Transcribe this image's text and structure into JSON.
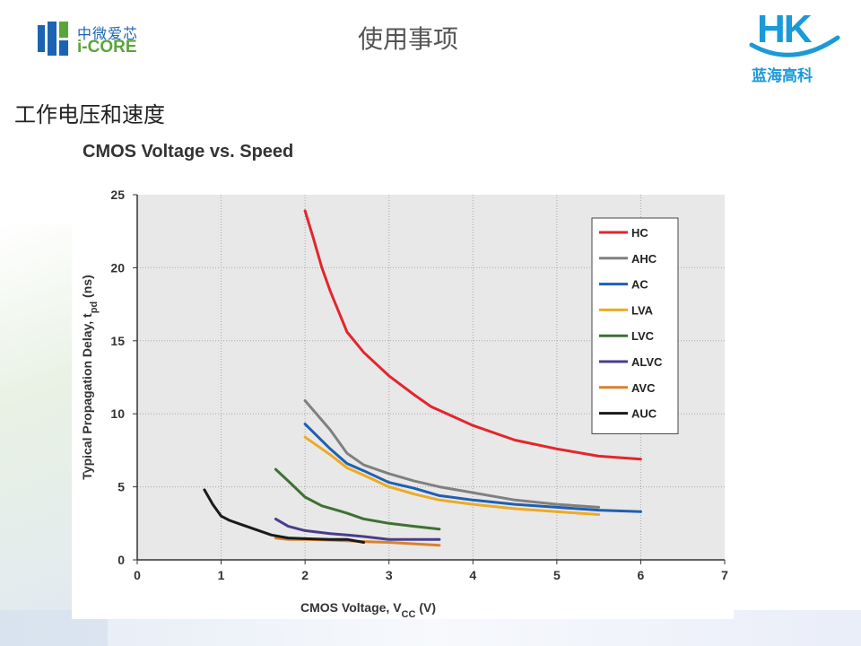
{
  "header": {
    "title": "使用事项",
    "logo_left": {
      "cn": "中微爱芯",
      "en": "i-CORE"
    },
    "logo_right": {
      "mark": "HK",
      "cn": "蓝海高科"
    }
  },
  "section": {
    "title": "工作电压和速度"
  },
  "colors": {
    "HC": "#e3262c",
    "AHC": "#808080",
    "AC": "#1f5fb0",
    "LVA": "#eeaa22",
    "LVC": "#3f7035",
    "ALVC": "#4a3c8c",
    "AVC": "#d9822b",
    "AUC": "#1a1a1a"
  },
  "chart_data": {
    "type": "line",
    "title": "CMOS Voltage vs. Speed",
    "xlabel": "CMOS Voltage, V",
    "xlabel_sub": "CC",
    "xlabel_unit": " (V)",
    "ylabel": "Typical Propagation Delay, t",
    "ylabel_sub": "pd",
    "ylabel_unit": " (ns)",
    "xlim": [
      0,
      7
    ],
    "ylim": [
      0,
      25
    ],
    "xticks": [
      "0",
      "1",
      "2",
      "3",
      "4",
      "5",
      "6",
      "7"
    ],
    "yticks": [
      "0",
      "5",
      "10",
      "15",
      "20",
      "25"
    ],
    "grid": true,
    "legend_position": "top-right",
    "series": [
      {
        "name": "HC",
        "points": [
          [
            2.0,
            23.9
          ],
          [
            2.1,
            22.0
          ],
          [
            2.2,
            20.0
          ],
          [
            2.3,
            18.4
          ],
          [
            2.5,
            15.6
          ],
          [
            2.7,
            14.2
          ],
          [
            3.0,
            12.6
          ],
          [
            3.3,
            11.3
          ],
          [
            3.5,
            10.5
          ],
          [
            4.0,
            9.2
          ],
          [
            4.5,
            8.2
          ],
          [
            5.0,
            7.6
          ],
          [
            5.5,
            7.1
          ],
          [
            6.0,
            6.9
          ]
        ]
      },
      {
        "name": "AHC",
        "points": [
          [
            2.0,
            10.9
          ],
          [
            2.3,
            8.9
          ],
          [
            2.5,
            7.3
          ],
          [
            2.7,
            6.5
          ],
          [
            3.0,
            5.9
          ],
          [
            3.3,
            5.4
          ],
          [
            3.6,
            5.0
          ],
          [
            4.0,
            4.6
          ],
          [
            4.5,
            4.1
          ],
          [
            5.0,
            3.8
          ],
          [
            5.5,
            3.6
          ]
        ]
      },
      {
        "name": "AC",
        "points": [
          [
            2.0,
            9.3
          ],
          [
            2.3,
            7.6
          ],
          [
            2.5,
            6.6
          ],
          [
            2.7,
            6.1
          ],
          [
            3.0,
            5.3
          ],
          [
            3.3,
            4.9
          ],
          [
            3.6,
            4.4
          ],
          [
            4.0,
            4.1
          ],
          [
            4.5,
            3.8
          ],
          [
            5.0,
            3.6
          ],
          [
            5.5,
            3.4
          ],
          [
            6.0,
            3.3
          ]
        ]
      },
      {
        "name": "LVA",
        "points": [
          [
            2.0,
            8.4
          ],
          [
            2.3,
            7.2
          ],
          [
            2.5,
            6.3
          ],
          [
            2.7,
            5.8
          ],
          [
            3.0,
            5.0
          ],
          [
            3.3,
            4.5
          ],
          [
            3.6,
            4.1
          ],
          [
            4.0,
            3.8
          ],
          [
            4.5,
            3.5
          ],
          [
            5.0,
            3.3
          ],
          [
            5.5,
            3.1
          ]
        ]
      },
      {
        "name": "LVC",
        "points": [
          [
            1.65,
            6.2
          ],
          [
            1.8,
            5.4
          ],
          [
            2.0,
            4.3
          ],
          [
            2.2,
            3.7
          ],
          [
            2.5,
            3.2
          ],
          [
            2.7,
            2.8
          ],
          [
            3.0,
            2.5
          ],
          [
            3.3,
            2.3
          ],
          [
            3.6,
            2.1
          ]
        ]
      },
      {
        "name": "ALVC",
        "points": [
          [
            1.65,
            2.8
          ],
          [
            1.8,
            2.3
          ],
          [
            2.0,
            2.0
          ],
          [
            2.3,
            1.8
          ],
          [
            2.5,
            1.7
          ],
          [
            2.7,
            1.6
          ],
          [
            3.0,
            1.4
          ],
          [
            3.3,
            1.4
          ],
          [
            3.6,
            1.4
          ]
        ]
      },
      {
        "name": "AVC",
        "points": [
          [
            1.65,
            1.5
          ],
          [
            1.8,
            1.4
          ],
          [
            2.0,
            1.4
          ],
          [
            2.3,
            1.35
          ],
          [
            2.5,
            1.3
          ],
          [
            2.7,
            1.25
          ],
          [
            3.0,
            1.2
          ],
          [
            3.3,
            1.1
          ],
          [
            3.6,
            1.0
          ]
        ]
      },
      {
        "name": "AUC",
        "points": [
          [
            0.8,
            4.8
          ],
          [
            0.9,
            3.8
          ],
          [
            1.0,
            3.0
          ],
          [
            1.1,
            2.7
          ],
          [
            1.2,
            2.5
          ],
          [
            1.4,
            2.1
          ],
          [
            1.6,
            1.7
          ],
          [
            1.8,
            1.5
          ],
          [
            2.0,
            1.45
          ],
          [
            2.3,
            1.4
          ],
          [
            2.5,
            1.4
          ],
          [
            2.7,
            1.2
          ]
        ]
      }
    ]
  }
}
